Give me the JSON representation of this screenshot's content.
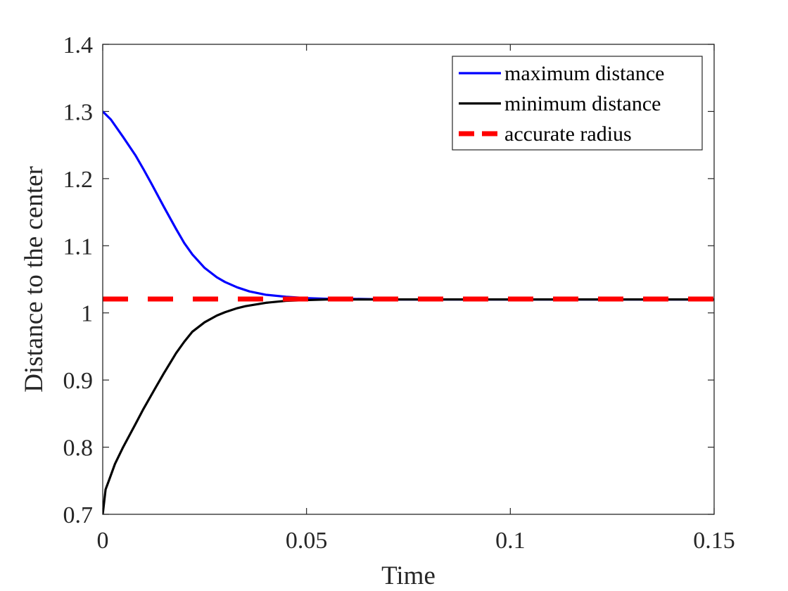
{
  "chart_data": {
    "type": "line",
    "title": "",
    "xlabel": "Time",
    "ylabel": "Distance to the center",
    "xlim": [
      0,
      0.15
    ],
    "ylim": [
      0.7,
      1.4
    ],
    "xticks": [
      0,
      0.05,
      0.1,
      0.15
    ],
    "xtick_labels": [
      "0",
      "0.05",
      "0.1",
      "0.15"
    ],
    "yticks": [
      0.7,
      0.8,
      0.9,
      1.0,
      1.1,
      1.2,
      1.3,
      1.4
    ],
    "ytick_labels": [
      "0.7",
      "0.8",
      "0.9",
      "1",
      "1.1",
      "1.2",
      "1.3",
      "1.4"
    ],
    "grid": false,
    "legend_position": "top-right",
    "series": [
      {
        "name": "maximum distance",
        "color": "#0000ff",
        "style": "solid",
        "x": [
          0,
          0.002,
          0.005,
          0.008,
          0.01,
          0.012,
          0.015,
          0.018,
          0.02,
          0.022,
          0.025,
          0.028,
          0.03,
          0.033,
          0.036,
          0.04,
          0.045,
          0.05,
          0.055,
          0.06,
          0.07,
          0.08,
          0.1,
          0.12,
          0.15
        ],
        "values": [
          1.3,
          1.288,
          1.262,
          1.235,
          1.214,
          1.192,
          1.158,
          1.125,
          1.104,
          1.087,
          1.067,
          1.053,
          1.046,
          1.038,
          1.032,
          1.027,
          1.024,
          1.022,
          1.021,
          1.021,
          1.02,
          1.02,
          1.02,
          1.02,
          1.02
        ]
      },
      {
        "name": "minimum distance",
        "color": "#000000",
        "style": "solid",
        "x": [
          0,
          0.0007,
          0.0015,
          0.003,
          0.005,
          0.008,
          0.01,
          0.013,
          0.015,
          0.018,
          0.02,
          0.022,
          0.025,
          0.028,
          0.03,
          0.033,
          0.035,
          0.04,
          0.045,
          0.05,
          0.055,
          0.06,
          0.07,
          0.08,
          0.1,
          0.12,
          0.15
        ],
        "values": [
          0.7,
          0.737,
          0.75,
          0.775,
          0.8,
          0.834,
          0.857,
          0.889,
          0.91,
          0.94,
          0.957,
          0.972,
          0.986,
          0.996,
          1.001,
          1.007,
          1.01,
          1.015,
          1.018,
          1.019,
          1.02,
          1.02,
          1.02,
          1.02,
          1.02,
          1.02,
          1.02
        ]
      },
      {
        "name": "accurate radius",
        "color": "#ff0000",
        "style": "dashed",
        "x": [
          0,
          0.15
        ],
        "values": [
          1.0207,
          1.0207
        ]
      }
    ]
  }
}
